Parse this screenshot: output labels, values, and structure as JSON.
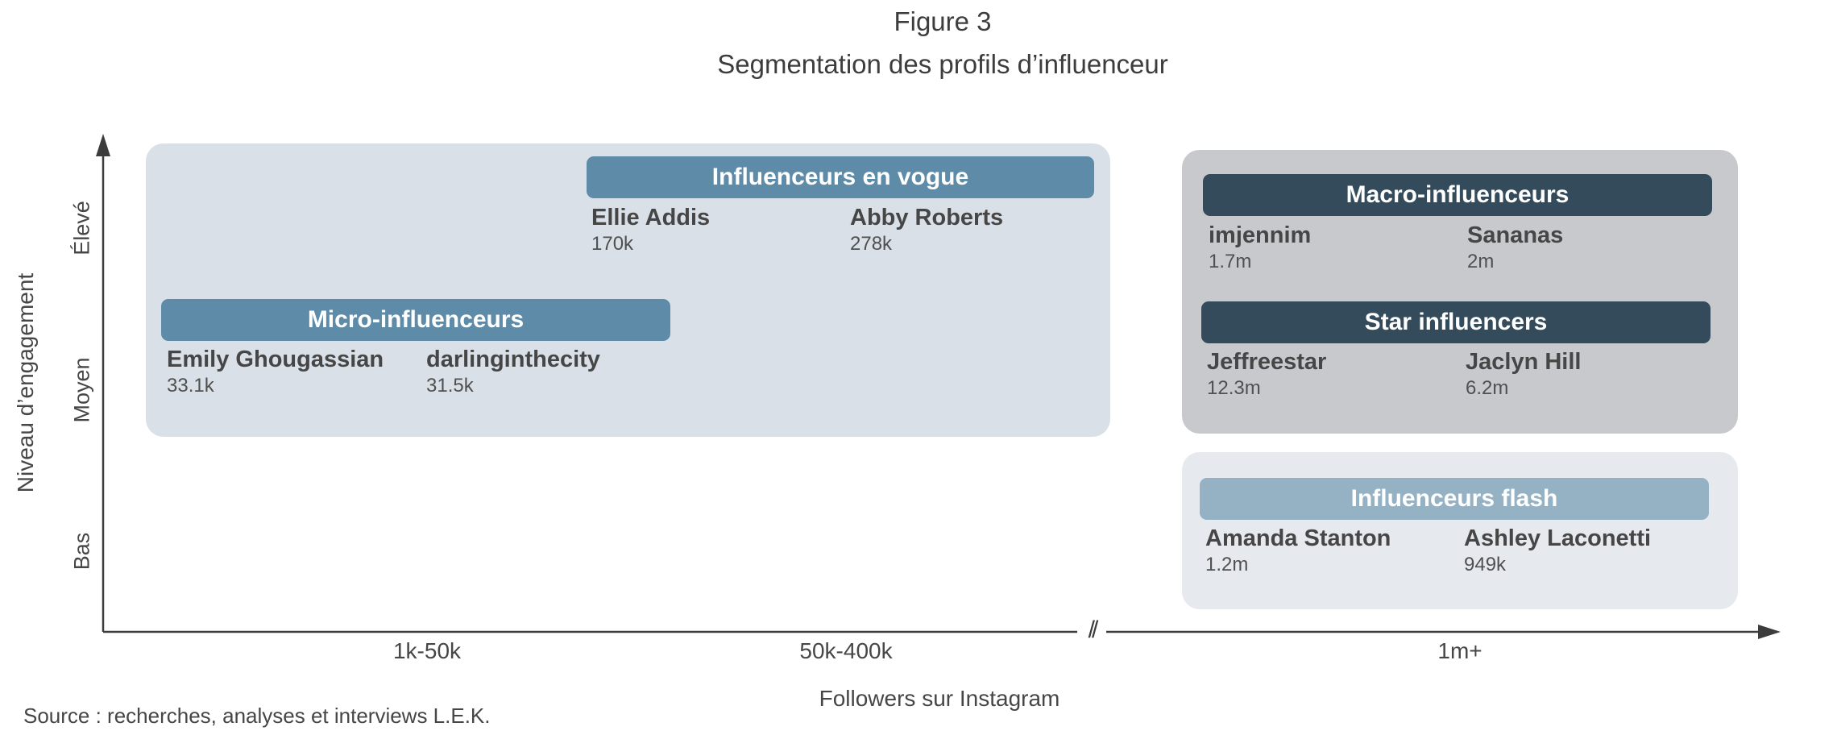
{
  "figure": {
    "title": "Figure 3",
    "subtitle": "Segmentation des profils d’influenceur"
  },
  "axes": {
    "y_title": "Niveau d’engagement",
    "y_levels": [
      "Élevé",
      "Moyen",
      "Bas"
    ],
    "x_title": "Followers sur Instagram",
    "x_categories": [
      "1k-50k",
      "50k-400k",
      "1m+"
    ],
    "x_axis_break": "//"
  },
  "segments": [
    {
      "name": "Influenceurs en vogue",
      "color": "#5e8ba7",
      "profiles": [
        {
          "name": "Ellie Addis",
          "followers": "170k"
        },
        {
          "name": "Abby Roberts",
          "followers": "278k"
        }
      ]
    },
    {
      "name": "Micro-influenceurs",
      "color": "#5e8ba7",
      "profiles": [
        {
          "name": "Emily Ghougassian",
          "followers": "33.1k"
        },
        {
          "name": "darlinginthecity",
          "followers": "31.5k"
        }
      ]
    },
    {
      "name": "Macro-influenceurs",
      "color": "#344b5b",
      "profiles": [
        {
          "name": "imjennim",
          "followers": "1.7m"
        },
        {
          "name": "Sananas",
          "followers": "2m"
        }
      ]
    },
    {
      "name": "Star influencers",
      "color": "#344b5b",
      "profiles": [
        {
          "name": "Jeffreestar",
          "followers": "12.3m"
        },
        {
          "name": "Jaclyn Hill",
          "followers": "6.2m"
        }
      ]
    },
    {
      "name": "Influenceurs flash",
      "color": "#95b1c4",
      "profiles": [
        {
          "name": "Amanda Stanton",
          "followers": "1.2m"
        },
        {
          "name": "Ashley Laconetti",
          "followers": "949k"
        }
      ]
    }
  ],
  "source": "Source : recherches, analyses et interviews L.E.K.",
  "colors": {
    "panel_light_blue": "#d9e0e8",
    "panel_grey": "#c8c9cd",
    "panel_pale": "#e6e9ee",
    "axis": "#3c3c3c"
  }
}
